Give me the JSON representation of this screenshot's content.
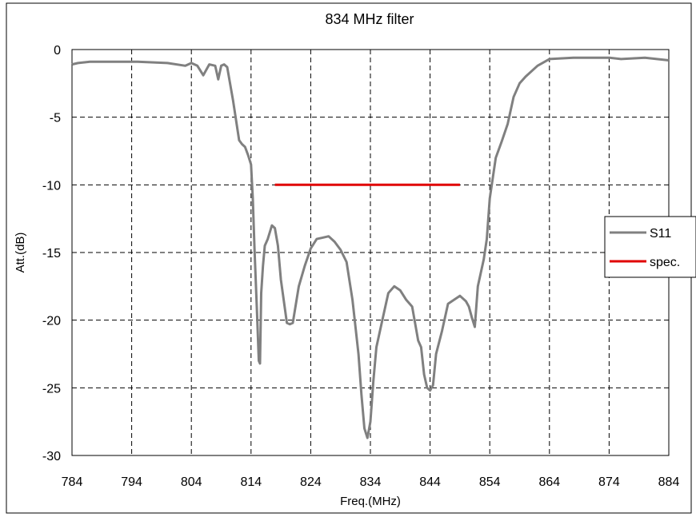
{
  "chart_data": {
    "type": "line",
    "title": "834 MHz filter",
    "xlabel": "Freq.(MHz)",
    "ylabel": "Att.(dB)",
    "xlim": [
      784,
      884
    ],
    "ylim": [
      -30,
      0
    ],
    "xticks": [
      784,
      794,
      804,
      814,
      824,
      834,
      844,
      854,
      864,
      874,
      884
    ],
    "yticks": [
      0,
      -5,
      -10,
      -15,
      -20,
      -25,
      -30
    ],
    "grid": true,
    "legend_position": "right",
    "series": [
      {
        "name": "S11",
        "color": "#808080",
        "x": [
          784,
          785,
          787,
          790,
          795,
          800,
          803,
          804,
          805,
          806,
          807,
          808,
          808.5,
          809,
          809.5,
          810,
          811,
          812,
          812.5,
          813,
          813.5,
          814,
          814.3,
          814.6,
          815,
          815.3,
          815.5,
          815.7,
          816,
          816.3,
          816.8,
          817.5,
          818,
          818.5,
          819,
          820,
          820.5,
          821,
          822,
          823,
          824,
          825,
          826,
          827,
          828,
          829,
          830,
          831,
          832,
          832.5,
          833,
          833.5,
          834,
          834.5,
          835,
          836,
          837,
          838,
          839,
          840,
          841,
          842,
          842.5,
          843,
          843.5,
          844,
          844.5,
          845,
          846,
          847,
          848,
          849,
          850,
          850.5,
          851,
          851.5,
          852,
          853,
          853.5,
          854,
          855,
          856,
          857,
          858,
          859,
          860,
          862,
          864,
          868,
          870,
          872,
          874,
          876,
          880,
          882,
          884
        ],
        "values": [
          -1.1,
          -1.0,
          -0.9,
          -0.9,
          -0.9,
          -1.0,
          -1.2,
          -1.0,
          -1.2,
          -1.9,
          -1.1,
          -1.2,
          -2.2,
          -1.2,
          -1.1,
          -1.3,
          -3.8,
          -6.7,
          -7.0,
          -7.2,
          -7.8,
          -8.5,
          -11.0,
          -15.0,
          -19.5,
          -23.0,
          -23.2,
          -18.0,
          -16.0,
          -14.5,
          -14.0,
          -13.0,
          -13.2,
          -14.5,
          -17.0,
          -20.2,
          -20.3,
          -20.2,
          -17.5,
          -16.0,
          -14.7,
          -14.0,
          -13.9,
          -13.8,
          -14.2,
          -14.8,
          -15.7,
          -18.5,
          -22.5,
          -25.5,
          -28.0,
          -28.7,
          -27.5,
          -24.5,
          -22.0,
          -20.0,
          -18.0,
          -17.5,
          -17.8,
          -18.5,
          -19.0,
          -21.5,
          -22.0,
          -24.0,
          -25.0,
          -25.2,
          -24.8,
          -22.5,
          -20.8,
          -18.8,
          -18.5,
          -18.2,
          -18.6,
          -19.0,
          -19.8,
          -20.5,
          -17.5,
          -15.5,
          -14.0,
          -11.0,
          -8.0,
          -6.8,
          -5.5,
          -3.5,
          -2.5,
          -2.0,
          -1.2,
          -0.7,
          -0.6,
          -0.6,
          -0.6,
          -0.6,
          -0.7,
          -0.6,
          -0.7,
          -0.8
        ]
      },
      {
        "name": "spec.",
        "color": "#e00000",
        "x": [
          818,
          849
        ],
        "values": [
          -10,
          -10
        ]
      }
    ]
  }
}
